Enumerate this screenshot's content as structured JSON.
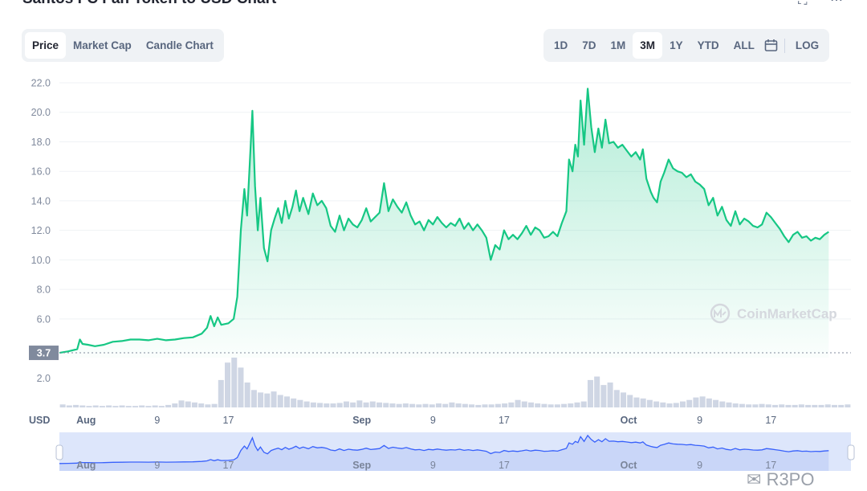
{
  "page_title": "Santos FC Fan Token to USD Chart",
  "toolbar": {
    "tabs": [
      {
        "label": "Price",
        "active": true
      },
      {
        "label": "Market Cap",
        "active": false
      },
      {
        "label": "Candle Chart",
        "active": false
      }
    ],
    "ranges": [
      {
        "label": "1D",
        "active": false
      },
      {
        "label": "7D",
        "active": false
      },
      {
        "label": "1M",
        "active": false
      },
      {
        "label": "3M",
        "active": true
      },
      {
        "label": "1Y",
        "active": false
      },
      {
        "label": "YTD",
        "active": false
      },
      {
        "label": "ALL",
        "active": false
      }
    ],
    "calendar_icon": "calendar-icon",
    "log_label": "LOG",
    "window_icons": [
      "fullscreen-icon",
      "more-icon"
    ]
  },
  "colors": {
    "line": "#16c784",
    "area_top": "#16c784",
    "volume": "#cfd6e4",
    "navigator_fill": "#dde6fb",
    "navigator_line": "#3861fb",
    "current_price_badge": "#808a9d"
  },
  "watermark": "CoinMarketCap",
  "overlay_text": "R3PO",
  "chart_data": {
    "type": "area",
    "title": "Santos FC Fan Token to USD Chart",
    "xlabel": "USD",
    "ylabel": "",
    "ylim": [
      0,
      22.6
    ],
    "yticks": [
      2.0,
      6.0,
      8.0,
      10.0,
      12.0,
      14.0,
      16.0,
      18.0,
      20.0,
      22.0
    ],
    "grid": true,
    "xlim": [
      0,
      89
    ],
    "x_tick_labels": [
      {
        "x": 3,
        "label": "Aug",
        "month": true
      },
      {
        "x": 11,
        "label": "9",
        "month": false
      },
      {
        "x": 19,
        "label": "17",
        "month": false
      },
      {
        "x": 34,
        "label": "Sep",
        "month": true
      },
      {
        "x": 42,
        "label": "9",
        "month": false
      },
      {
        "x": 50,
        "label": "17",
        "month": false
      },
      {
        "x": 64,
        "label": "Oct",
        "month": true
      },
      {
        "x": 72,
        "label": "9",
        "month": false
      },
      {
        "x": 80,
        "label": "17",
        "month": false
      }
    ],
    "current_price": {
      "value": 3.7,
      "label": "3.7"
    },
    "series": [
      {
        "values": [
          [
            0,
            3.7
          ],
          [
            1,
            3.8
          ],
          [
            2,
            3.95
          ],
          [
            2.3,
            4.6
          ],
          [
            2.6,
            4.3
          ],
          [
            3.2,
            4.25
          ],
          [
            4,
            4.15
          ],
          [
            5,
            4.25
          ],
          [
            6,
            4.45
          ],
          [
            7,
            4.5
          ],
          [
            8,
            4.6
          ],
          [
            9,
            4.6
          ],
          [
            10,
            4.55
          ],
          [
            11,
            4.65
          ],
          [
            12,
            4.55
          ],
          [
            13,
            4.6
          ],
          [
            14,
            4.7
          ],
          [
            15,
            4.75
          ],
          [
            16,
            5.0
          ],
          [
            16.6,
            5.4
          ],
          [
            17,
            6.2
          ],
          [
            17.4,
            5.5
          ],
          [
            17.8,
            6.1
          ],
          [
            18.2,
            5.6
          ],
          [
            19,
            5.7
          ],
          [
            19.6,
            6.0
          ],
          [
            20,
            7.5
          ],
          [
            20.4,
            12.0
          ],
          [
            20.8,
            14.8
          ],
          [
            21.1,
            13.0
          ],
          [
            21.4,
            16.5
          ],
          [
            21.7,
            20.1
          ],
          [
            22,
            15.0
          ],
          [
            22.3,
            12.0
          ],
          [
            22.6,
            14.2
          ],
          [
            23,
            10.8
          ],
          [
            23.4,
            9.9
          ],
          [
            23.8,
            12.0
          ],
          [
            24.2,
            12.8
          ],
          [
            24.6,
            13.5
          ],
          [
            25,
            12.5
          ],
          [
            25.4,
            14.0
          ],
          [
            25.8,
            12.8
          ],
          [
            26.2,
            13.6
          ],
          [
            26.6,
            14.7
          ],
          [
            27,
            13.3
          ],
          [
            27.4,
            14.2
          ],
          [
            28,
            13.1
          ],
          [
            28.5,
            14.5
          ],
          [
            29,
            13.7
          ],
          [
            29.5,
            14.0
          ],
          [
            30,
            13.5
          ],
          [
            30.5,
            12.3
          ],
          [
            31,
            11.9
          ],
          [
            31.5,
            13.0
          ],
          [
            32,
            12.0
          ],
          [
            32.5,
            12.8
          ],
          [
            33,
            12.4
          ],
          [
            33.5,
            12.2
          ],
          [
            34,
            12.7
          ],
          [
            34.5,
            13.5
          ],
          [
            35,
            12.6
          ],
          [
            35.5,
            12.9
          ],
          [
            36,
            13.2
          ],
          [
            36.5,
            15.2
          ],
          [
            37,
            13.3
          ],
          [
            37.5,
            14.1
          ],
          [
            38,
            13.6
          ],
          [
            38.5,
            13.2
          ],
          [
            39,
            13.9
          ],
          [
            39.5,
            13.0
          ],
          [
            40,
            12.4
          ],
          [
            40.5,
            12.6
          ],
          [
            41,
            12.0
          ],
          [
            41.5,
            12.7
          ],
          [
            42,
            12.4
          ],
          [
            42.5,
            12.9
          ],
          [
            43,
            12.5
          ],
          [
            43.5,
            12.2
          ],
          [
            44,
            12.5
          ],
          [
            44.5,
            12.3
          ],
          [
            45,
            12.8
          ],
          [
            45.5,
            12.1
          ],
          [
            46,
            12.5
          ],
          [
            46.5,
            12.0
          ],
          [
            47,
            12.4
          ],
          [
            47.5,
            12.0
          ],
          [
            48,
            11.5
          ],
          [
            48.5,
            10.0
          ],
          [
            49,
            11.0
          ],
          [
            49.5,
            10.7
          ],
          [
            50,
            12.0
          ],
          [
            50.5,
            11.4
          ],
          [
            51,
            11.7
          ],
          [
            51.5,
            11.4
          ],
          [
            52,
            11.8
          ],
          [
            52.5,
            12.3
          ],
          [
            53,
            11.7
          ],
          [
            53.5,
            12.2
          ],
          [
            54,
            12.0
          ],
          [
            54.5,
            11.5
          ],
          [
            55,
            11.6
          ],
          [
            55.5,
            11.9
          ],
          [
            56,
            11.6
          ],
          [
            56.5,
            12.5
          ],
          [
            57,
            13.3
          ],
          [
            57.3,
            16.8
          ],
          [
            57.7,
            16.0
          ],
          [
            58,
            17.8
          ],
          [
            58.3,
            17.0
          ],
          [
            58.6,
            20.8
          ],
          [
            59,
            17.8
          ],
          [
            59.4,
            21.6
          ],
          [
            59.8,
            19.0
          ],
          [
            60.2,
            17.3
          ],
          [
            60.6,
            18.9
          ],
          [
            61,
            17.6
          ],
          [
            61.4,
            19.5
          ],
          [
            61.8,
            17.9
          ],
          [
            62.3,
            18.0
          ],
          [
            62.8,
            17.6
          ],
          [
            63.3,
            17.8
          ],
          [
            63.8,
            17.4
          ],
          [
            64.3,
            17.0
          ],
          [
            64.8,
            17.3
          ],
          [
            65.3,
            16.8
          ],
          [
            65.6,
            17.5
          ],
          [
            66,
            15.5
          ],
          [
            66.5,
            14.6
          ],
          [
            66.8,
            14.2
          ],
          [
            67.2,
            13.9
          ],
          [
            67.6,
            15.3
          ],
          [
            68,
            15.9
          ],
          [
            68.5,
            16.8
          ],
          [
            69,
            16.2
          ],
          [
            69.5,
            16.0
          ],
          [
            70,
            15.9
          ],
          [
            70.5,
            15.6
          ],
          [
            71,
            15.8
          ],
          [
            71.5,
            15.3
          ],
          [
            72,
            15.1
          ],
          [
            72.5,
            14.8
          ],
          [
            73,
            13.7
          ],
          [
            73.5,
            14.2
          ],
          [
            74,
            13.0
          ],
          [
            74.5,
            13.6
          ],
          [
            75,
            12.7
          ],
          [
            75.5,
            12.3
          ],
          [
            76,
            13.3
          ],
          [
            76.5,
            12.4
          ],
          [
            77,
            12.8
          ],
          [
            77.5,
            12.6
          ],
          [
            78,
            12.3
          ],
          [
            78.5,
            12.2
          ],
          [
            79,
            12.4
          ],
          [
            79.5,
            13.2
          ],
          [
            80,
            12.9
          ],
          [
            80.5,
            12.5
          ],
          [
            81,
            12.1
          ],
          [
            81.5,
            11.6
          ],
          [
            82,
            11.2
          ],
          [
            82.5,
            11.7
          ],
          [
            83,
            11.9
          ],
          [
            83.5,
            11.5
          ],
          [
            84,
            11.6
          ],
          [
            84.5,
            11.3
          ],
          [
            85,
            11.5
          ],
          [
            85.5,
            11.4
          ],
          [
            86,
            11.7
          ],
          [
            86.5,
            11.9
          ]
        ]
      }
    ],
    "volume": {
      "ylabel_tick": "2.0",
      "values": [
        0.06,
        0.04,
        0.05,
        0.04,
        0.03,
        0.04,
        0.03,
        0.04,
        0.03,
        0.04,
        0.03,
        0.03,
        0.04,
        0.03,
        0.04,
        0.03,
        0.05,
        0.08,
        0.14,
        0.12,
        0.1,
        0.08,
        0.06,
        0.07,
        0.55,
        0.9,
        1.0,
        0.8,
        0.5,
        0.35,
        0.3,
        0.28,
        0.32,
        0.25,
        0.22,
        0.18,
        0.15,
        0.12,
        0.1,
        0.09,
        0.08,
        0.08,
        0.09,
        0.12,
        0.1,
        0.14,
        0.1,
        0.12,
        0.1,
        0.09,
        0.08,
        0.07,
        0.08,
        0.07,
        0.06,
        0.07,
        0.06,
        0.08,
        0.07,
        0.1,
        0.08,
        0.07,
        0.06,
        0.05,
        0.06,
        0.06,
        0.07,
        0.08,
        0.1,
        0.15,
        0.12,
        0.1,
        0.08,
        0.07,
        0.06,
        0.06,
        0.07,
        0.08,
        0.1,
        0.12,
        0.55,
        0.62,
        0.45,
        0.5,
        0.35,
        0.3,
        0.25,
        0.2,
        0.18,
        0.15,
        0.12,
        0.1,
        0.08,
        0.09,
        0.12,
        0.15,
        0.2,
        0.22,
        0.18,
        0.15,
        0.12,
        0.1,
        0.08,
        0.07,
        0.06,
        0.06,
        0.07,
        0.06,
        0.05,
        0.06,
        0.05,
        0.05,
        0.06,
        0.05,
        0.05,
        0.05,
        0.06,
        0.05,
        0.05,
        0.06
      ]
    },
    "navigator": {
      "x_tick_labels": [
        {
          "x": 3,
          "label": "Aug",
          "month": true
        },
        {
          "x": 11,
          "label": "9",
          "month": false
        },
        {
          "x": 19,
          "label": "17",
          "month": false
        },
        {
          "x": 34,
          "label": "Sep",
          "month": true
        },
        {
          "x": 42,
          "label": "9",
          "month": false
        },
        {
          "x": 50,
          "label": "17",
          "month": false
        },
        {
          "x": 64,
          "label": "Oct",
          "month": true
        },
        {
          "x": 72,
          "label": "9",
          "month": false
        },
        {
          "x": 80,
          "label": "17",
          "month": false
        }
      ]
    }
  }
}
